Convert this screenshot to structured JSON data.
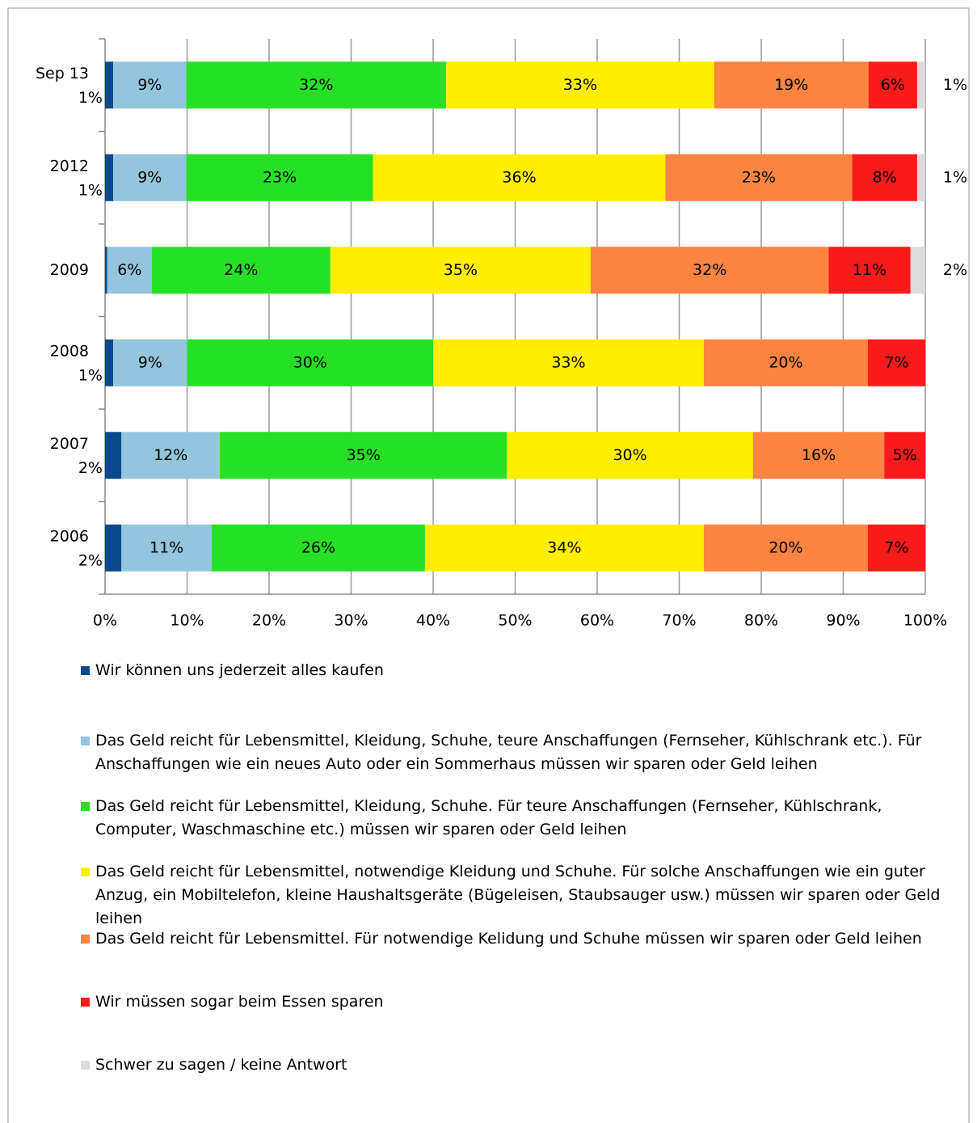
{
  "chart_data": {
    "type": "bar",
    "orientation": "horizontal",
    "stacked": "percent",
    "categories": [
      "Sep 13",
      "2012",
      "2009",
      "2008",
      "2007",
      "2006"
    ],
    "series": [
      {
        "name": "Wir können uns jederzeit alles kaufen",
        "color": "#0b4a8a",
        "values": [
          1,
          1,
          0.3,
          1,
          2,
          2
        ],
        "value_labels": [
          "1%",
          "1%",
          null,
          "1%",
          "2%",
          "2%"
        ]
      },
      {
        "name": "Das Geld reicht für Lebensmittel, Kleidung, Schuhe, teure Anschaffungen (Fernseher, Kühlschrank etc.). Für Anschaffungen wie ein neues Auto oder ein Sommerhaus müssen wir sparen oder Geld leihen",
        "color": "#93c5dc",
        "values": [
          9,
          9,
          6,
          9,
          12,
          11
        ],
        "value_labels": [
          "9%",
          "9%",
          "6%",
          "9%",
          "12%",
          "11%"
        ]
      },
      {
        "name": "Das Geld reicht für Lebensmittel, Kleidung, Schuhe. Für teure Anschaffungen (Fernseher, Kühlschrank, Computer, Waschmaschine etc.) müssen wir sparen oder Geld leihen",
        "color": "#26e026",
        "values": [
          32,
          23,
          24,
          30,
          35,
          26
        ],
        "value_labels": [
          "32%",
          "23%",
          "24%",
          "30%",
          "35%",
          "26%"
        ]
      },
      {
        "name": "Das Geld reicht für Lebensmittel, notwendige Kleidung und Schuhe. Für solche Anschaffungen wie ein guter Anzug, ein Mobiltelefon, kleine Haushaltsgeräte (Bügeleisen, Staubsauger usw.) müssen wir sparen oder Geld leihen",
        "color": "#ffee00",
        "values": [
          33,
          36,
          35,
          33,
          30,
          34
        ],
        "value_labels": [
          "33%",
          "36%",
          "35%",
          "33%",
          "30%",
          "34%"
        ]
      },
      {
        "name": "Das Geld reicht für Lebensmittel. Für notwendige Kelidung und Schuhe müssen wir sparen oder Geld leihen",
        "color": "#fb8441",
        "values": [
          19,
          23,
          32,
          20,
          16,
          20
        ],
        "value_labels": [
          "19%",
          "23%",
          "32%",
          "20%",
          "16%",
          "20%"
        ]
      },
      {
        "name": "Wir müssen sogar beim Essen sparen",
        "color": "#f71b1b",
        "values": [
          6,
          8,
          11,
          7,
          5,
          7
        ],
        "value_labels": [
          "6%",
          "8%",
          "11%",
          "7%",
          "5%",
          "7%"
        ]
      },
      {
        "name": "Schwer zu sagen / keine Antwort",
        "color": "#dcdcdc",
        "values": [
          1,
          1,
          2,
          null,
          null,
          null
        ],
        "value_labels": [
          "1%",
          "1%",
          "2%",
          null,
          null,
          null
        ]
      }
    ],
    "xlim": [
      0,
      100
    ],
    "xticks": [
      {
        "value": 0,
        "label": "0%"
      },
      {
        "value": 10,
        "label": "10%"
      },
      {
        "value": 20,
        "label": "20%"
      },
      {
        "value": 30,
        "label": "30%"
      },
      {
        "value": 40,
        "label": "40%"
      },
      {
        "value": 50,
        "label": "50%"
      },
      {
        "value": 60,
        "label": "60%"
      },
      {
        "value": 70,
        "label": "70%"
      },
      {
        "value": 80,
        "label": "80%"
      },
      {
        "value": 90,
        "label": "90%"
      },
      {
        "value": 100,
        "label": "100%"
      }
    ],
    "grid": true,
    "legend": "bottom"
  }
}
